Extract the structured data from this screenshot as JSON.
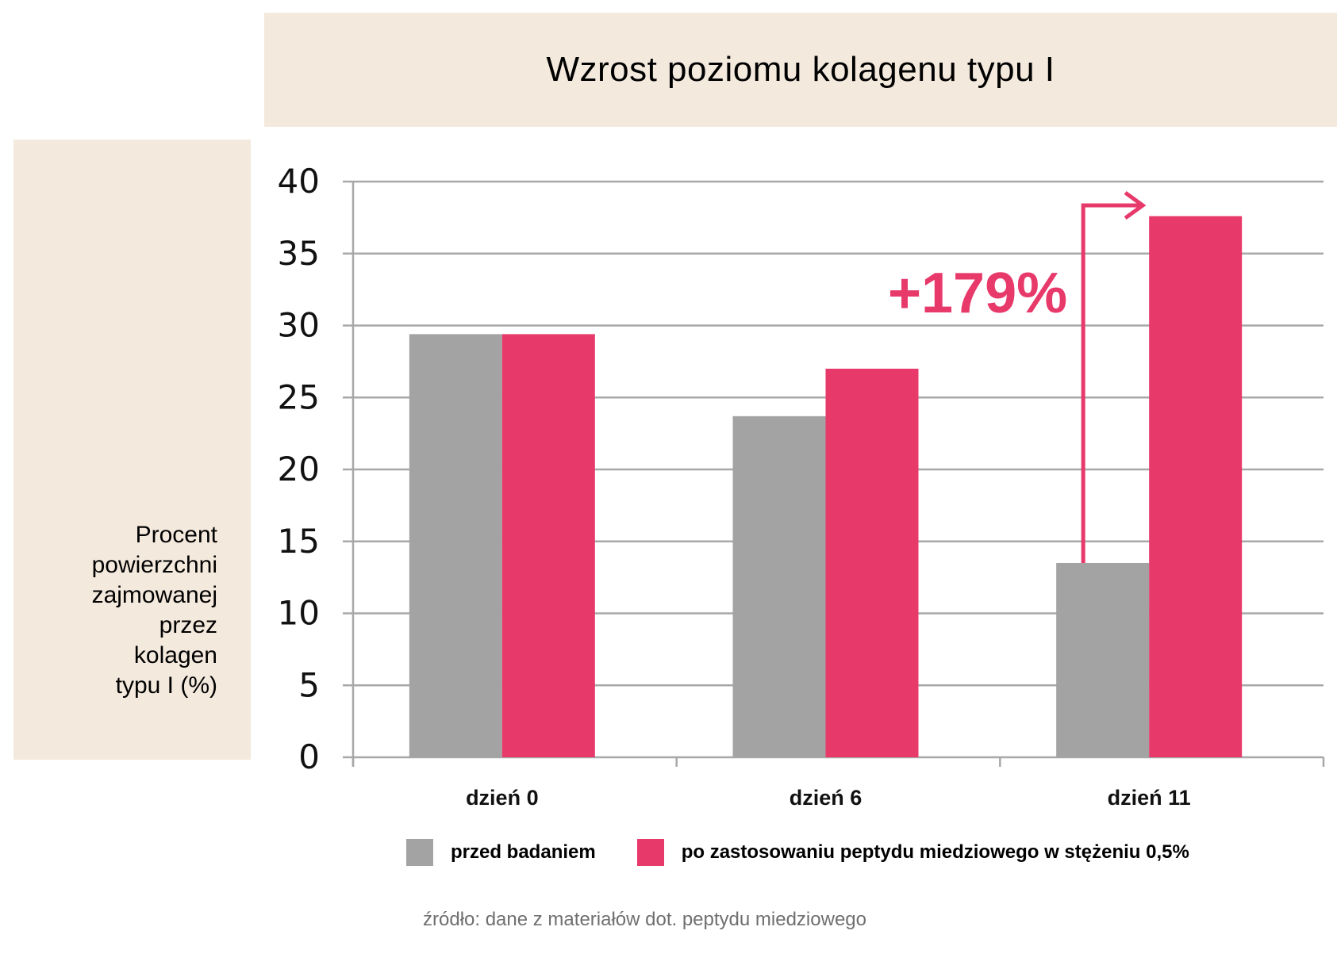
{
  "header": {
    "title": "Wzrost poziomu kolagenu typu I"
  },
  "chart_data": {
    "type": "bar",
    "title": "Wzrost poziomu kolagenu typu I",
    "ylabel": "Procent\npowierzchni\nzajmowanej\nprzez\nkolagen\ntypu I (%)",
    "xlabel": "",
    "categories": [
      "dzień 0",
      "dzień 6",
      "dzień 11"
    ],
    "series": [
      {
        "name": "przed badaniem",
        "color": "#a3a3a3",
        "values": [
          29.4,
          23.7,
          13.5
        ]
      },
      {
        "name": "po zastosowaniu peptydu miedziowego w stężeniu 0,5%",
        "color": "#e8396b",
        "values": [
          29.4,
          27.0,
          37.6
        ]
      }
    ],
    "ylim": [
      0,
      40
    ],
    "yticks": [
      "0",
      "5",
      "10",
      "15",
      "20",
      "25",
      "30",
      "35",
      "40"
    ],
    "grid": true,
    "legend_position": "bottom",
    "annotation": {
      "text": "+179%",
      "category": "dzień 11",
      "color": "#e8396b"
    }
  },
  "source": "źródło: dane z materiałów dot. peptydu miedziowego"
}
